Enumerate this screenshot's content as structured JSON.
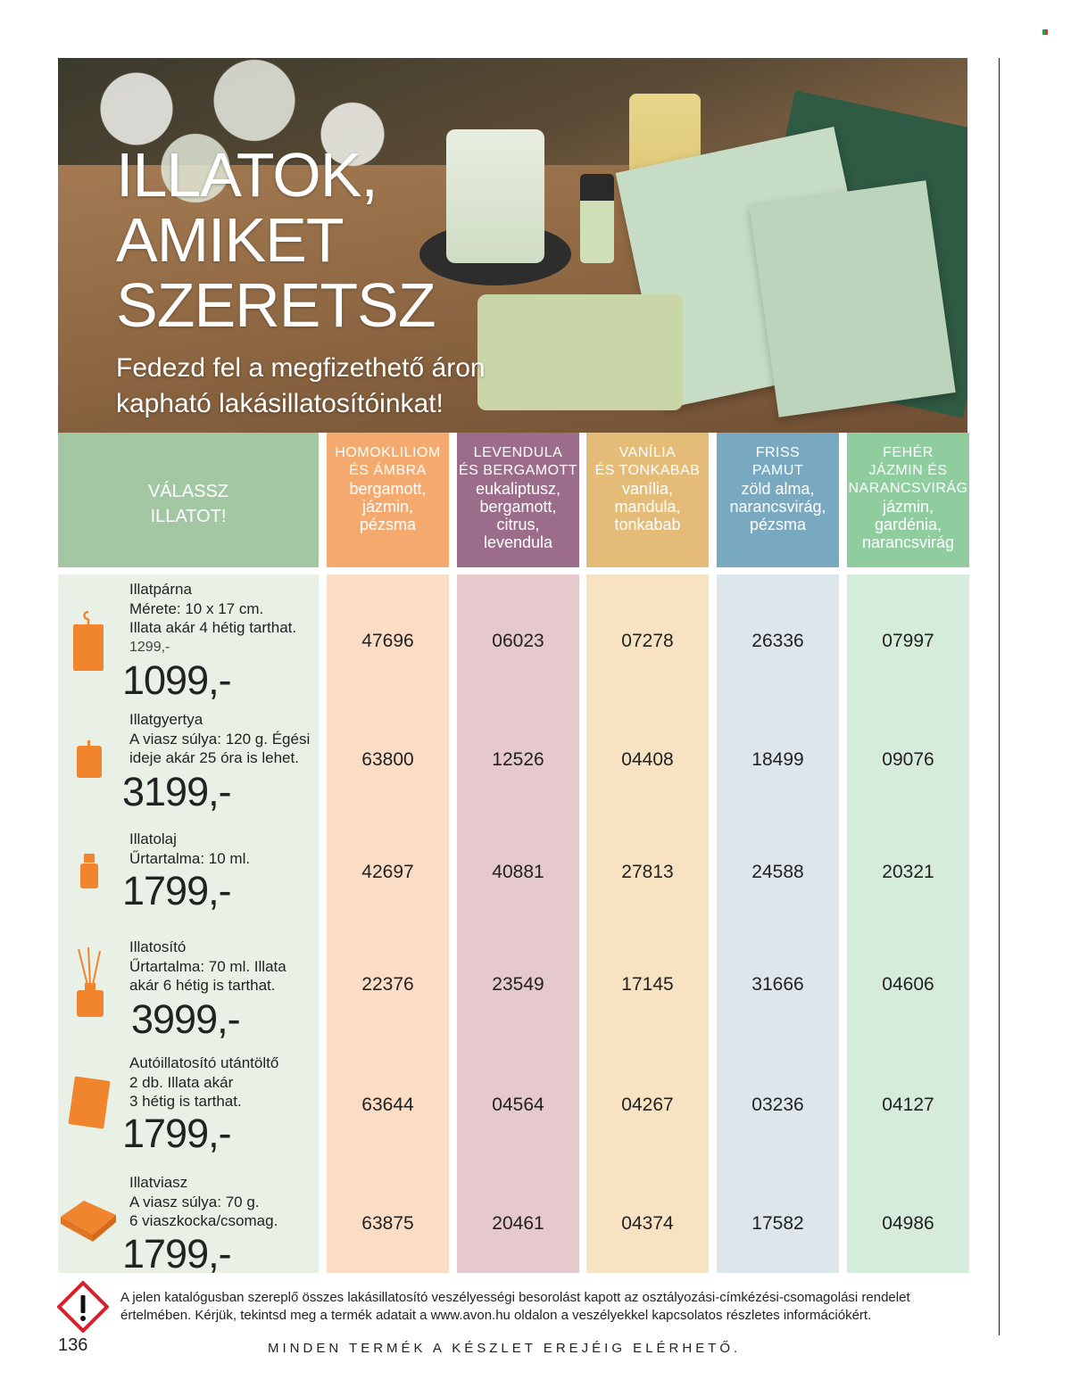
{
  "hero": {
    "title_lines": [
      "ILLATOK,",
      "AMIKET",
      "SZERETSZ"
    ],
    "subtitle_lines": [
      "Fedezd fel a megfizethető áron",
      "kapható lakásillatosítóinkat!"
    ]
  },
  "choose_label_lines": [
    "VÁLASSZ",
    "ILLATOT!"
  ],
  "scents": [
    {
      "name_lines": [
        "HOMOKLILIOM",
        "ÉS ÁMBRA"
      ],
      "notes_lines": [
        "bergamott,",
        "jázmin,",
        "pézsma"
      ],
      "color": "#f4aa6e",
      "light": "#fbdcc4"
    },
    {
      "name_lines": [
        "LEVENDULA",
        "ÉS BERGAMOTT"
      ],
      "notes_lines": [
        "eukaliptusz,",
        "bergamott,",
        "citrus,",
        "levendula"
      ],
      "color": "#9b6d8a",
      "light": "#e6c9cd"
    },
    {
      "name_lines": [
        "VANÍLIA",
        "ÉS TONKABAB"
      ],
      "notes_lines": [
        "vanília,",
        "mandula,",
        "tonkabab"
      ],
      "color": "#e4bc78",
      "light": "#f7e2c1"
    },
    {
      "name_lines": [
        "FRISS",
        "PAMUT"
      ],
      "notes_lines": [
        "zöld alma,",
        "narancsvirág,",
        "pézsma"
      ],
      "color": "#79a9c0",
      "light": "#dde6ea"
    },
    {
      "name_lines": [
        "FEHÉR",
        "JÁZMIN ÉS",
        "NARANCSVIRÁG"
      ],
      "notes_lines": [
        "jázmin,",
        "gardénia,",
        "narancsvirág"
      ],
      "color": "#8fcd9f",
      "light": "#d5ebdb"
    }
  ],
  "products": [
    {
      "icon": "hanging-sachet-icon",
      "title_lines": [
        "Illatpárna",
        "Mérete: 10 x 17 cm.",
        "Illata akár 4 hétig tarthat."
      ],
      "old_price": "1299,-",
      "price": "1099,-",
      "codes": [
        "47696",
        "06023",
        "07278",
        "26336",
        "07997"
      ]
    },
    {
      "icon": "candle-icon",
      "title_lines": [
        "Illatgyertya",
        "A viasz súlya: 120 g. Égési",
        "ideje akár 25 óra is lehet."
      ],
      "old_price": "",
      "price": "3199,-",
      "codes": [
        "63800",
        "12526",
        "04408",
        "18499",
        "09076"
      ]
    },
    {
      "icon": "oil-bottle-icon",
      "title_lines": [
        "Illatolaj",
        "Űrtartalma: 10 ml."
      ],
      "old_price": "",
      "price": "1799,-",
      "codes": [
        "42697",
        "40881",
        "27813",
        "24588",
        "20321"
      ]
    },
    {
      "icon": "reed-diffuser-icon",
      "title_lines": [
        "Illatosító",
        "Űrtartalma: 70 ml. Illata",
        "akár 6 hétig is tarthat."
      ],
      "old_price": "",
      "price": "3999,-",
      "codes": [
        "22376",
        "23549",
        "17145",
        "31666",
        "04606"
      ]
    },
    {
      "icon": "car-refill-icon",
      "title_lines": [
        "Autóillatosító utántöltő",
        "2 db. Illata akár",
        "3 hétig is tarthat."
      ],
      "old_price": "",
      "price": "1799,-",
      "codes": [
        "63644",
        "04564",
        "04267",
        "03236",
        "04127"
      ]
    },
    {
      "icon": "wax-melt-icon",
      "title_lines": [
        "Illatviasz",
        "A viasz súlya: 70 g.",
        "6 viaszkocka/csomag."
      ],
      "old_price": "",
      "price": "1799,-",
      "codes": [
        "63875",
        "20461",
        "04374",
        "17582",
        "04986"
      ]
    }
  ],
  "footer": {
    "warning_icon": "hazard-warning-icon",
    "note_lines": [
      "A jelen katalógusban szereplő összes lakásillatosító veszélyességi besorolást kapott az osztályozási-címkézési-csomagolási rendelet",
      "értelmében. Kérjük, tekintsd meg a termék adatait a www.avon.hu oldalon a veszélyekkel kapcsolatos részletes információkért."
    ],
    "page_number": "136",
    "availability": "MINDEN TERMÉK A KÉSZLET EREJÉIG ELÉRHETŐ."
  }
}
